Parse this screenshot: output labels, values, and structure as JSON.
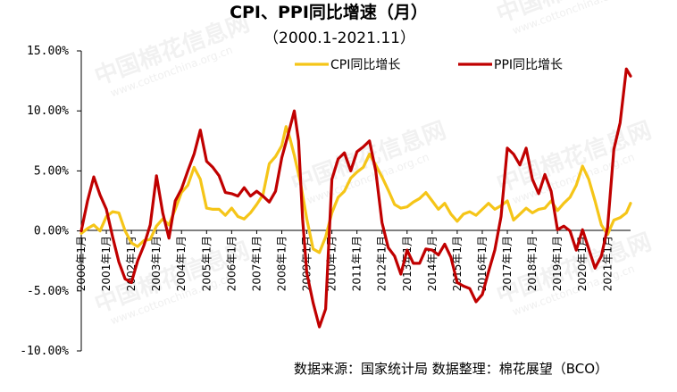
{
  "title": "CPI、PPI同比增速（月）",
  "subtitle": "（2000.1-2021.11）",
  "source_note": "数据来源：国家统计局  数据整理：棉花展望（BCO）",
  "watermark": {
    "brand": "中国棉花信息网",
    "url": "www.cottonchina.org.cn"
  },
  "colors": {
    "cpi": "#F5C518",
    "ppi": "#C00000",
    "axis": "#000000"
  },
  "chart_data": {
    "type": "line",
    "title": "CPI、PPI同比增速（月）",
    "subtitle": "（2000.1-2021.11）",
    "xlabel": "",
    "ylabel": "",
    "ylim": [
      -10,
      15
    ],
    "y_ticks": [
      "15.00%",
      "10.00%",
      "5.00%",
      "0.00%",
      "-5.00%",
      "-10.00%"
    ],
    "x_tick_labels": [
      "2000年1月",
      "2001年1月",
      "2002年1月",
      "2003年1月",
      "2004年1月",
      "2005年1月",
      "2006年1月",
      "2007年1月",
      "2008年1月",
      "2009年1月",
      "2010年1月",
      "2011年1月",
      "2012年1月",
      "2013年1月",
      "2014年1月",
      "2015年1月",
      "2016年1月",
      "2017年1月",
      "2018年1月",
      "2019年1月",
      "2020年1月",
      "2021年1月"
    ],
    "x_range": [
      2000.0,
      2021.9167
    ],
    "legend_position": "top-right",
    "grid": false,
    "series": [
      {
        "name": "CPI同比增长",
        "color": "#F5C518",
        "x": [
          2000.0,
          2000.25,
          2000.5,
          2000.75,
          2001.0,
          2001.25,
          2001.5,
          2001.75,
          2002.0,
          2002.25,
          2002.5,
          2002.75,
          2003.0,
          2003.25,
          2003.5,
          2003.75,
          2004.0,
          2004.25,
          2004.5,
          2004.75,
          2005.0,
          2005.25,
          2005.5,
          2005.75,
          2006.0,
          2006.25,
          2006.5,
          2006.75,
          2007.0,
          2007.25,
          2007.5,
          2007.75,
          2008.0,
          2008.17,
          2008.33,
          2008.5,
          2008.75,
          2009.0,
          2009.25,
          2009.5,
          2009.75,
          2010.0,
          2010.25,
          2010.5,
          2010.75,
          2011.0,
          2011.25,
          2011.5,
          2011.75,
          2012.0,
          2012.25,
          2012.5,
          2012.75,
          2013.0,
          2013.25,
          2013.5,
          2013.75,
          2014.0,
          2014.25,
          2014.5,
          2014.75,
          2015.0,
          2015.25,
          2015.5,
          2015.75,
          2016.0,
          2016.25,
          2016.5,
          2016.75,
          2017.0,
          2017.25,
          2017.5,
          2017.75,
          2018.0,
          2018.25,
          2018.5,
          2018.75,
          2019.0,
          2019.25,
          2019.5,
          2019.75,
          2020.0,
          2020.25,
          2020.5,
          2020.75,
          2021.0,
          2021.25,
          2021.5,
          2021.75,
          2021.9167
        ],
        "values": [
          -0.2,
          0.2,
          0.5,
          0.0,
          1.2,
          1.6,
          1.5,
          0.0,
          -1.0,
          -1.3,
          -0.8,
          -0.7,
          0.4,
          1.0,
          0.5,
          1.8,
          3.2,
          3.8,
          5.3,
          4.3,
          1.9,
          1.8,
          1.8,
          1.3,
          1.9,
          1.2,
          1.0,
          1.5,
          2.2,
          3.0,
          5.6,
          6.2,
          7.1,
          8.7,
          7.7,
          6.3,
          4.0,
          1.0,
          -1.5,
          -1.8,
          -0.5,
          1.5,
          2.8,
          3.3,
          4.4,
          4.9,
          5.3,
          6.4,
          5.5,
          4.5,
          3.4,
          2.2,
          1.9,
          2.0,
          2.4,
          2.7,
          3.2,
          2.5,
          1.8,
          2.3,
          1.4,
          0.8,
          1.4,
          1.6,
          1.3,
          1.8,
          2.3,
          1.8,
          2.1,
          2.5,
          0.9,
          1.4,
          1.9,
          1.5,
          1.8,
          1.9,
          2.5,
          1.7,
          2.3,
          2.8,
          3.8,
          5.4,
          4.3,
          2.5,
          0.5,
          -0.3,
          0.9,
          1.1,
          1.5,
          2.3
        ]
      },
      {
        "name": "PPI同比增长",
        "color": "#C00000",
        "x": [
          2000.0,
          2000.25,
          2000.5,
          2000.75,
          2001.0,
          2001.25,
          2001.5,
          2001.75,
          2002.0,
          2002.25,
          2002.5,
          2002.75,
          2003.0,
          2003.25,
          2003.5,
          2003.75,
          2004.0,
          2004.25,
          2004.5,
          2004.75,
          2005.0,
          2005.25,
          2005.5,
          2005.75,
          2006.0,
          2006.25,
          2006.5,
          2006.75,
          2007.0,
          2007.25,
          2007.5,
          2007.75,
          2008.0,
          2008.25,
          2008.5,
          2008.67,
          2008.83,
          2009.0,
          2009.25,
          2009.5,
          2009.75,
          2010.0,
          2010.25,
          2010.5,
          2010.75,
          2011.0,
          2011.25,
          2011.5,
          2011.75,
          2012.0,
          2012.25,
          2012.5,
          2012.75,
          2013.0,
          2013.25,
          2013.5,
          2013.75,
          2014.0,
          2014.25,
          2014.5,
          2014.75,
          2015.0,
          2015.25,
          2015.5,
          2015.75,
          2016.0,
          2016.25,
          2016.5,
          2016.75,
          2017.0,
          2017.25,
          2017.5,
          2017.75,
          2018.0,
          2018.25,
          2018.5,
          2018.75,
          2019.0,
          2019.25,
          2019.5,
          2019.75,
          2020.0,
          2020.25,
          2020.5,
          2020.75,
          2021.0,
          2021.25,
          2021.5,
          2021.75,
          2021.9167
        ],
        "values": [
          0.0,
          2.5,
          4.5,
          3.0,
          1.8,
          -0.5,
          -2.6,
          -4.0,
          -4.3,
          -2.5,
          -1.2,
          0.5,
          4.6,
          1.5,
          -0.6,
          2.5,
          3.5,
          5.0,
          6.4,
          8.4,
          5.8,
          5.3,
          4.6,
          3.2,
          3.1,
          2.9,
          3.6,
          2.9,
          3.3,
          2.9,
          2.4,
          3.3,
          6.1,
          8.0,
          10.0,
          7.5,
          1.0,
          -3.5,
          -6.0,
          -8.0,
          -6.5,
          4.3,
          6.0,
          6.5,
          5.0,
          6.6,
          7.0,
          7.5,
          5.0,
          0.7,
          -1.4,
          -2.1,
          -3.6,
          -1.6,
          -2.7,
          -2.7,
          -1.5,
          -1.6,
          -2.0,
          -1.1,
          -2.2,
          -4.3,
          -4.6,
          -4.8,
          -5.9,
          -5.3,
          -3.4,
          -1.6,
          1.2,
          6.9,
          6.4,
          5.5,
          6.9,
          4.3,
          3.1,
          4.7,
          3.3,
          0.1,
          0.4,
          0.0,
          -1.6,
          0.1,
          -1.5,
          -3.1,
          -2.1,
          0.3,
          6.8,
          9.0,
          13.5,
          12.9
        ]
      }
    ]
  }
}
